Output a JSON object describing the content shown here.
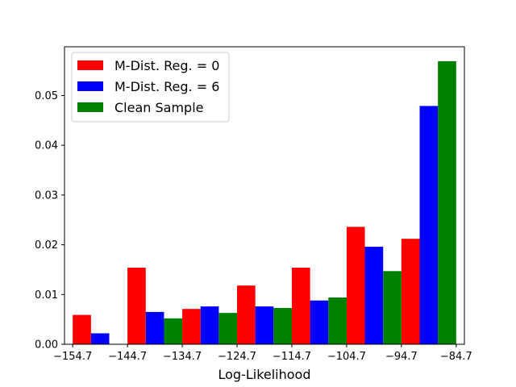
{
  "chart_data": {
    "type": "bar",
    "xlabel": "Log-Likelihood",
    "ylabel": "",
    "title": "",
    "xlim": [
      -156.2,
      -83.2
    ],
    "ylim": [
      0,
      0.0598
    ],
    "xticks": [
      -154.7,
      -144.7,
      -134.7,
      -124.7,
      -114.7,
      -104.7,
      -94.7,
      -84.7
    ],
    "xtick_labels": [
      "−154.7",
      "−144.7",
      "−134.7",
      "−124.7",
      "−114.7",
      "−104.7",
      "−94.7",
      "−84.7"
    ],
    "yticks": [
      0,
      0.01,
      0.02,
      0.03,
      0.04,
      0.05
    ],
    "ytick_labels": [
      "0.00",
      "0.01",
      "0.02",
      "0.03",
      "0.04",
      "0.05"
    ],
    "bin_edges": [
      -154.7,
      -144.7,
      -134.7,
      -124.7,
      -114.7,
      -104.7,
      -94.7,
      -84.7
    ],
    "legend_position": "upper-left",
    "series": [
      {
        "name": "M-Dist. Reg. = 0",
        "color": "#ff0000",
        "values": [
          0.0059,
          0.0154,
          0.0071,
          0.0118,
          0.0154,
          0.0236,
          0.0212
        ]
      },
      {
        "name": "M-Dist. Reg. = 6",
        "color": "#0000ff",
        "values": [
          0.0022,
          0.0065,
          0.0076,
          0.0076,
          0.0088,
          0.0196,
          0.0479
        ]
      },
      {
        "name": "Clean Sample",
        "color": "#008000",
        "values": [
          0.0,
          0.0052,
          0.0063,
          0.0073,
          0.0094,
          0.0147,
          0.0569
        ]
      }
    ]
  }
}
